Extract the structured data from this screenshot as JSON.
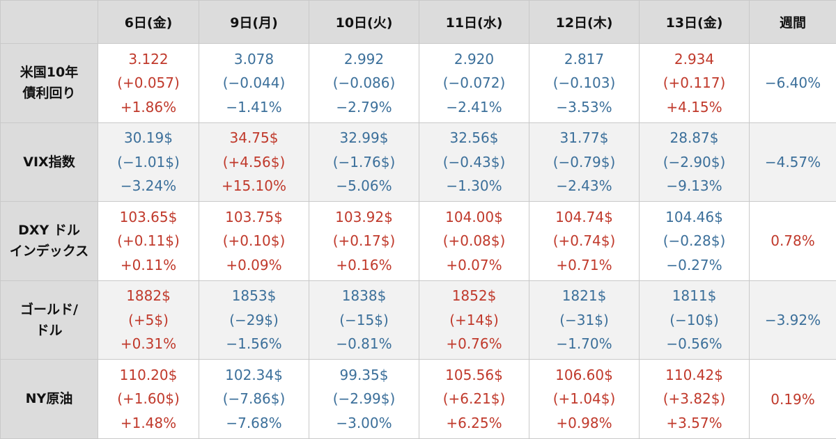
{
  "colors": {
    "positive": "#c0392b",
    "negative": "#3b6f9a",
    "header_bg": "#dcdcdc"
  },
  "header": {
    "days": [
      "6日(金)",
      "9日(月)",
      "10日(火)",
      "11日(水)",
      "12日(木)",
      "13日(金)"
    ],
    "weekly": "週間"
  },
  "rows": [
    {
      "label_lines": [
        "米国10年",
        "債利回り"
      ],
      "cells": [
        {
          "value": "3.122",
          "change": "(+0.057)",
          "pct": "+1.86%",
          "dir": "pos"
        },
        {
          "value": "3.078",
          "change": "(−0.044)",
          "pct": "−1.41%",
          "dir": "neg"
        },
        {
          "value": "2.992",
          "change": "(−0.086)",
          "pct": "−2.79%",
          "dir": "neg"
        },
        {
          "value": "2.920",
          "change": "(−0.072)",
          "pct": "−2.41%",
          "dir": "neg"
        },
        {
          "value": "2.817",
          "change": "(−0.103)",
          "pct": "−3.53%",
          "dir": "neg"
        },
        {
          "value": "2.934",
          "change": "(+0.117)",
          "pct": "+4.15%",
          "dir": "pos"
        }
      ],
      "weekly": "−6.40%",
      "weekly_dir": "neg"
    },
    {
      "label_lines": [
        "VIX指数"
      ],
      "cells": [
        {
          "value": "30.19$",
          "change": "(−1.01$)",
          "pct": "−3.24%",
          "dir": "neg"
        },
        {
          "value": "34.75$",
          "change": "(+4.56$)",
          "pct": "+15.10%",
          "dir": "pos"
        },
        {
          "value": "32.99$",
          "change": "(−1.76$)",
          "pct": "−5.06%",
          "dir": "neg"
        },
        {
          "value": "32.56$",
          "change": "(−0.43$)",
          "pct": "−1.30%",
          "dir": "neg"
        },
        {
          "value": "31.77$",
          "change": "(−0.79$)",
          "pct": "−2.43%",
          "dir": "neg"
        },
        {
          "value": "28.87$",
          "change": "(−2.90$)",
          "pct": "−9.13%",
          "dir": "neg"
        }
      ],
      "weekly": "−4.57%",
      "weekly_dir": "neg"
    },
    {
      "label_lines": [
        "DXY ドル",
        "インデックス"
      ],
      "cells": [
        {
          "value": "103.65$",
          "change": "(+0.11$)",
          "pct": "+0.11%",
          "dir": "pos"
        },
        {
          "value": "103.75$",
          "change": "(+0.10$)",
          "pct": "+0.09%",
          "dir": "pos"
        },
        {
          "value": "103.92$",
          "change": "(+0.17$)",
          "pct": "+0.16%",
          "dir": "pos"
        },
        {
          "value": "104.00$",
          "change": "(+0.08$)",
          "pct": "+0.07%",
          "dir": "pos"
        },
        {
          "value": "104.74$",
          "change": "(+0.74$)",
          "pct": "+0.71%",
          "dir": "pos"
        },
        {
          "value": "104.46$",
          "change": "(−0.28$)",
          "pct": "−0.27%",
          "dir": "neg"
        }
      ],
      "weekly": "0.78%",
      "weekly_dir": "pos"
    },
    {
      "label_lines": [
        "ゴールド/",
        "ドル"
      ],
      "cells": [
        {
          "value": "1882$",
          "change": "(+5$)",
          "pct": "+0.31%",
          "dir": "pos"
        },
        {
          "value": "1853$",
          "change": "(−29$)",
          "pct": "−1.56%",
          "dir": "neg"
        },
        {
          "value": "1838$",
          "change": "(−15$)",
          "pct": "−0.81%",
          "dir": "neg"
        },
        {
          "value": "1852$",
          "change": "(+14$)",
          "pct": "+0.76%",
          "dir": "pos"
        },
        {
          "value": "1821$",
          "change": "(−31$)",
          "pct": "−1.70%",
          "dir": "neg"
        },
        {
          "value": "1811$",
          "change": "(−10$)",
          "pct": "−0.56%",
          "dir": "neg"
        }
      ],
      "weekly": "−3.92%",
      "weekly_dir": "neg"
    },
    {
      "label_lines": [
        "NY原油"
      ],
      "cells": [
        {
          "value": "110.20$",
          "change": "(+1.60$)",
          "pct": "+1.48%",
          "dir": "pos"
        },
        {
          "value": "102.34$",
          "change": "(−7.86$)",
          "pct": "−7.68%",
          "dir": "neg"
        },
        {
          "value": "99.35$",
          "change": "(−2.99$)",
          "pct": "−3.00%",
          "dir": "neg"
        },
        {
          "value": "105.56$",
          "change": "(+6.21$)",
          "pct": "+6.25%",
          "dir": "pos"
        },
        {
          "value": "106.60$",
          "change": "(+1.04$)",
          "pct": "+0.98%",
          "dir": "pos"
        },
        {
          "value": "110.42$",
          "change": "(+3.82$)",
          "pct": "+3.57%",
          "dir": "pos"
        }
      ],
      "weekly": "0.19%",
      "weekly_dir": "pos"
    }
  ]
}
